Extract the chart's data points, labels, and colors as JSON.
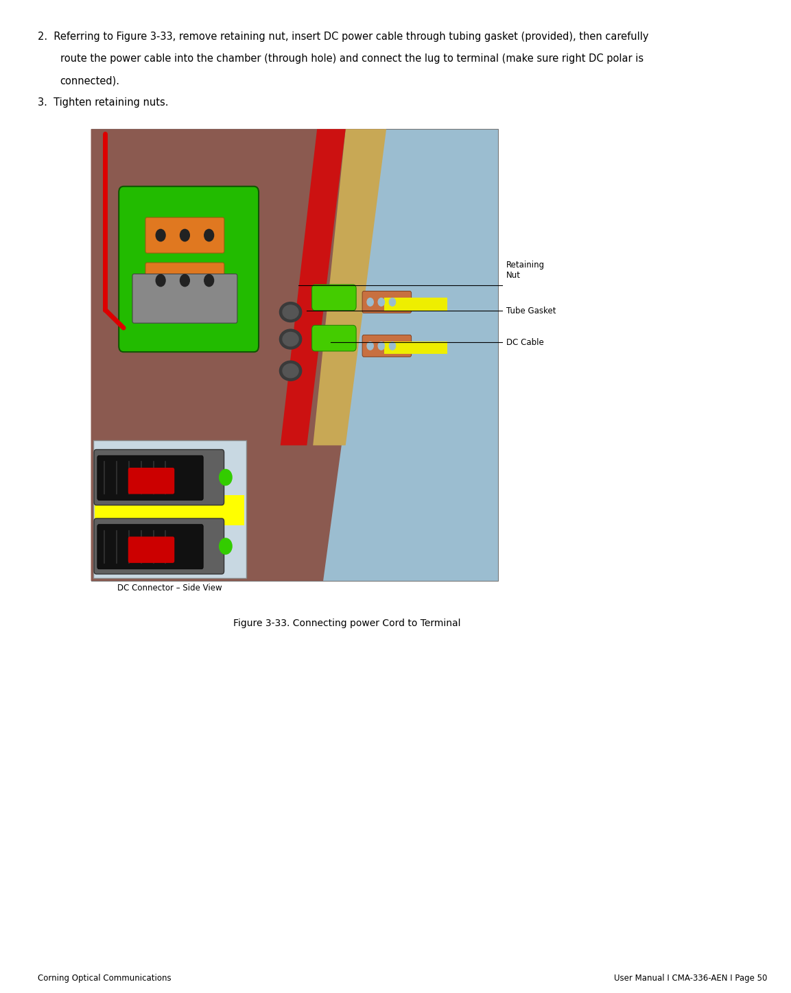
{
  "background_color": "#ffffff",
  "body_text_color": "#000000",
  "footer_text_color": "#000000",
  "body_font_size": 10.5,
  "footer_font_size": 8.5,
  "item2_line1": "2.  Referring to Figure 3-33, remove retaining nut, insert DC power cable through tubing gasket (provided), then carefully",
  "item2_line2": "route the power cable into the chamber (through hole) and connect the lug to terminal (make sure right DC polar is",
  "item2_line3": "connected).",
  "item3_text": "3.  Tighten retaining nuts.",
  "figure_caption": "Figure 3-33. Connecting power Cord to Terminal",
  "footer_left": "Corning Optical Communications",
  "footer_right": "User Manual I CMA-336-AEN I Page 50",
  "inset_caption": "DC Connector – Side View",
  "label_retaining": "Retaining\nNut",
  "label_gasket": "Tube Gasket",
  "label_cable": "DC Cable"
}
